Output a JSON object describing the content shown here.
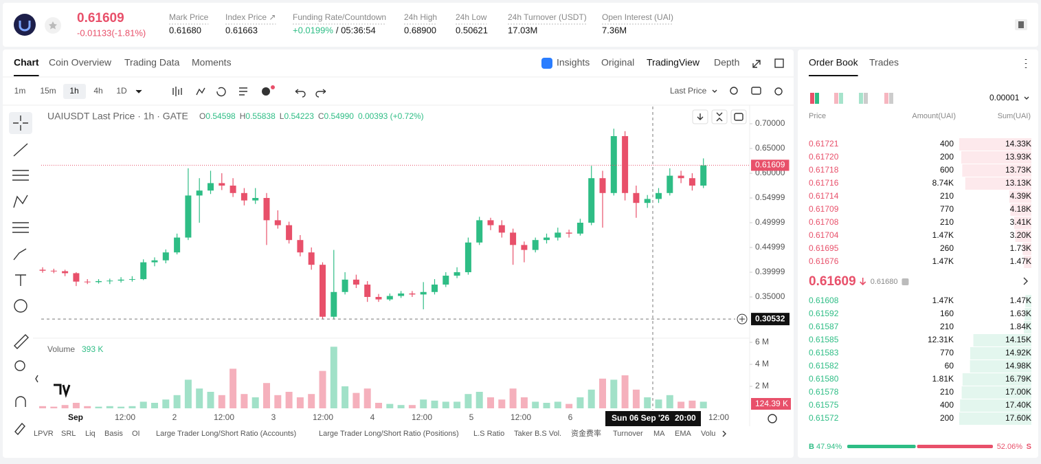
{
  "header": {
    "price": "0.61609",
    "change": "-0.01133(-1.81%)",
    "stats": [
      {
        "label": "Mark Price",
        "value": "0.61680"
      },
      {
        "label": "Index Price ↗",
        "value": "0.61663"
      },
      {
        "label": "Funding Rate/Countdown",
        "value": "+0.0199%",
        "extra": "/ 05:36:54"
      },
      {
        "label": "24h High",
        "value": "0.68900"
      },
      {
        "label": "24h Low",
        "value": "0.50621"
      },
      {
        "label": "24h Turnover (USDT)",
        "value": "17.03M"
      },
      {
        "label": "Open Interest (UAI)",
        "value": "7.36M"
      }
    ]
  },
  "tabs": [
    "Chart",
    "Coin Overview",
    "Trading Data",
    "Moments"
  ],
  "view_tabs": [
    "Insights",
    "Original",
    "TradingView",
    "Depth"
  ],
  "intervals": [
    "1m",
    "15m",
    "1h",
    "4h",
    "1D"
  ],
  "price_source": "Last Price",
  "indicators": [
    "LPVR",
    "SRL",
    "Liq",
    "Basis",
    "OI",
    "Large Trader Long/Short Ratio (Accounts)",
    "Large Trader Long/Short Ratio (Positions)",
    "L.S Ratio",
    "Taker B.S Vol.",
    "资金费率",
    "Turnover",
    "MA",
    "EMA",
    "Volu"
  ],
  "chart_data": {
    "type": "candlestick",
    "title": "UAIUSDT Last Price · 1h · GATE",
    "ohlc_legend": [
      {
        "key": "O",
        "value": "0.54598"
      },
      {
        "key": "H",
        "value": "0.55838"
      },
      {
        "key": "L",
        "value": "0.54223"
      },
      {
        "key": "C",
        "value": "0.54990"
      }
    ],
    "legend_change": "0.00393 (+0.72%)",
    "up_color": "#2ebd85",
    "down_color": "#e8506a",
    "ylim": [
      0.2694,
      0.7278
    ],
    "yticks": [
      {
        "value": 0.7,
        "label": "0.70000"
      },
      {
        "value": 0.65,
        "label": "0.65000"
      },
      {
        "value": 0.6,
        "label": "0.60000"
      },
      {
        "value": 0.54999,
        "label": "0.54999"
      },
      {
        "value": 0.49999,
        "label": "0.49999"
      },
      {
        "value": 0.44999,
        "label": "0.44999"
      },
      {
        "value": 0.39999,
        "label": "0.39999"
      },
      {
        "value": 0.35,
        "label": "0.35000"
      }
    ],
    "last_price": {
      "value": 0.61609,
      "label": "0.61609"
    },
    "cursor_price": {
      "value": 0.30532,
      "label": "0.30532"
    },
    "ohlc": [
      [
        0.405,
        0.41,
        0.399,
        0.403
      ],
      [
        0.403,
        0.407,
        0.398,
        0.402
      ],
      [
        0.402,
        0.405,
        0.392,
        0.398
      ],
      [
        0.398,
        0.4,
        0.372,
        0.381
      ],
      [
        0.381,
        0.386,
        0.376,
        0.38
      ],
      [
        0.38,
        0.386,
        0.377,
        0.382
      ],
      [
        0.382,
        0.387,
        0.376,
        0.383
      ],
      [
        0.383,
        0.39,
        0.379,
        0.385
      ],
      [
        0.385,
        0.392,
        0.381,
        0.386
      ],
      [
        0.386,
        0.426,
        0.384,
        0.42
      ],
      [
        0.42,
        0.43,
        0.412,
        0.424
      ],
      [
        0.424,
        0.446,
        0.418,
        0.44
      ],
      [
        0.44,
        0.478,
        0.436,
        0.47
      ],
      [
        0.47,
        0.61,
        0.465,
        0.555
      ],
      [
        0.555,
        0.59,
        0.5,
        0.565
      ],
      [
        0.565,
        0.605,
        0.558,
        0.58
      ],
      [
        0.58,
        0.6,
        0.566,
        0.575
      ],
      [
        0.575,
        0.59,
        0.552,
        0.56
      ],
      [
        0.56,
        0.57,
        0.535,
        0.545
      ],
      [
        0.545,
        0.57,
        0.538,
        0.55
      ],
      [
        0.55,
        0.56,
        0.455,
        0.505
      ],
      [
        0.505,
        0.525,
        0.488,
        0.495
      ],
      [
        0.495,
        0.502,
        0.458,
        0.465
      ],
      [
        0.465,
        0.475,
        0.432,
        0.44
      ],
      [
        0.44,
        0.45,
        0.405,
        0.415
      ],
      [
        0.415,
        0.42,
        0.305,
        0.31
      ],
      [
        0.31,
        0.445,
        0.306,
        0.36
      ],
      [
        0.36,
        0.4,
        0.355,
        0.385
      ],
      [
        0.385,
        0.395,
        0.368,
        0.375
      ],
      [
        0.375,
        0.382,
        0.34,
        0.35
      ],
      [
        0.35,
        0.356,
        0.34,
        0.345
      ],
      [
        0.345,
        0.357,
        0.342,
        0.352
      ],
      [
        0.352,
        0.362,
        0.348,
        0.357
      ],
      [
        0.357,
        0.362,
        0.35,
        0.355
      ],
      [
        0.355,
        0.38,
        0.325,
        0.36
      ],
      [
        0.36,
        0.386,
        0.355,
        0.375
      ],
      [
        0.375,
        0.4,
        0.37,
        0.393
      ],
      [
        0.393,
        0.41,
        0.388,
        0.4
      ],
      [
        0.4,
        0.47,
        0.395,
        0.46
      ],
      [
        0.46,
        0.512,
        0.455,
        0.505
      ],
      [
        0.505,
        0.51,
        0.485,
        0.495
      ],
      [
        0.495,
        0.505,
        0.47,
        0.48
      ],
      [
        0.48,
        0.488,
        0.415,
        0.455
      ],
      [
        0.455,
        0.462,
        0.42,
        0.445
      ],
      [
        0.445,
        0.47,
        0.44,
        0.465
      ],
      [
        0.465,
        0.478,
        0.458,
        0.47
      ],
      [
        0.47,
        0.49,
        0.464,
        0.48
      ],
      [
        0.48,
        0.486,
        0.47,
        0.478
      ],
      [
        0.478,
        0.508,
        0.474,
        0.5
      ],
      [
        0.5,
        0.615,
        0.495,
        0.59
      ],
      [
        0.59,
        0.605,
        0.49,
        0.56
      ],
      [
        0.56,
        0.69,
        0.555,
        0.675
      ],
      [
        0.675,
        0.685,
        0.545,
        0.56
      ],
      [
        0.56,
        0.575,
        0.51,
        0.54
      ],
      [
        0.54,
        0.556,
        0.53,
        0.548
      ],
      [
        0.548,
        0.57,
        0.54,
        0.56
      ],
      [
        0.56,
        0.61,
        0.555,
        0.595
      ],
      [
        0.595,
        0.605,
        0.58,
        0.59
      ],
      [
        0.59,
        0.6,
        0.565,
        0.575
      ],
      [
        0.575,
        0.63,
        0.57,
        0.616
      ]
    ],
    "volume_title": "Volume",
    "volume_value": "393 K",
    "volume_last": "124.39 K",
    "volume_ylim": [
      0,
      6000000
    ],
    "volume_yticks": [
      {
        "value": 6000000,
        "label": "6 M"
      },
      {
        "value": 4000000,
        "label": "4 M"
      },
      {
        "value": 2000000,
        "label": "2 M"
      }
    ],
    "volumes": [
      200000,
      150000,
      300000,
      500000,
      200000,
      150000,
      200000,
      150000,
      200000,
      600000,
      500000,
      800000,
      1200000,
      2600000,
      1800000,
      1500000,
      1200000,
      3600000,
      1300000,
      1000000,
      2300000,
      1200000,
      1500000,
      1000000,
      1300000,
      3400000,
      5600000,
      2000000,
      1400000,
      1800000,
      500000,
      400000,
      300000,
      300000,
      800000,
      700000,
      600000,
      600000,
      1300000,
      1500000,
      1000000,
      800000,
      1800000,
      1000000,
      600000,
      500000,
      600000,
      400000,
      1000000,
      1700000,
      2700000,
      2600000,
      3000000,
      1700000,
      1000000,
      800000,
      1200000,
      600000,
      700000,
      600000
    ],
    "time_labels": [
      "Sep",
      "12:00",
      "2",
      "12:00",
      "3",
      "12:00",
      "4",
      "12:00",
      "5",
      "12:00",
      "6",
      "12:00"
    ],
    "crosshair_date": "Sun 06 Sep '26",
    "crosshair_time": "20:00"
  },
  "order_book": {
    "tabs": [
      "Order Book",
      "Trades"
    ],
    "precision": "0.00001",
    "columns": [
      "Price",
      "Amount(UAI)",
      "Sum(UAI)"
    ],
    "asks": [
      [
        "0.61721",
        "400",
        "14.33K"
      ],
      [
        "0.61720",
        "200",
        "13.93K"
      ],
      [
        "0.61718",
        "600",
        "13.73K"
      ],
      [
        "0.61716",
        "8.74K",
        "13.13K"
      ],
      [
        "0.61714",
        "210",
        "4.39K"
      ],
      [
        "0.61709",
        "770",
        "4.18K"
      ],
      [
        "0.61708",
        "210",
        "3.41K"
      ],
      [
        "0.61704",
        "1.47K",
        "3.20K"
      ],
      [
        "0.61695",
        "260",
        "1.73K"
      ],
      [
        "0.61676",
        "1.47K",
        "1.47K"
      ]
    ],
    "mid_price": "0.61609",
    "mark_price": "0.61680",
    "bids": [
      [
        "0.61608",
        "1.47K",
        "1.47K"
      ],
      [
        "0.61592",
        "160",
        "1.63K"
      ],
      [
        "0.61587",
        "210",
        "1.84K"
      ],
      [
        "0.61585",
        "12.31K",
        "14.15K"
      ],
      [
        "0.61583",
        "770",
        "14.92K"
      ],
      [
        "0.61582",
        "60",
        "14.98K"
      ],
      [
        "0.61580",
        "1.81K",
        "16.79K"
      ],
      [
        "0.61578",
        "210",
        "17.00K"
      ],
      [
        "0.61575",
        "400",
        "17.40K"
      ],
      [
        "0.61572",
        "200",
        "17.60K"
      ]
    ],
    "buy_label": "B",
    "buy_ratio": {
      "value": 47.94,
      "label": "47.94%"
    },
    "sell_ratio": {
      "value": 52.06,
      "label": "52.06%"
    },
    "sell_label": "S"
  }
}
